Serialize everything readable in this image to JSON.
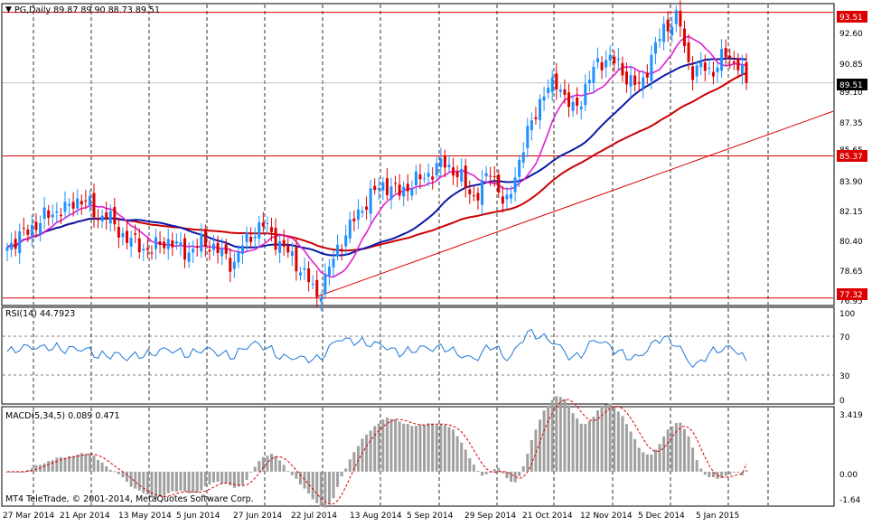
{
  "window": {
    "title": "PG,Daily  89.87 89.90 88.73 89.51",
    "symbol": "PG",
    "timeframe": "Daily",
    "ohlc": {
      "open": "89.87",
      "high": "89.90",
      "low": "88.73",
      "close": "89.51"
    }
  },
  "colors": {
    "background": "#ffffff",
    "grid": "#000000",
    "up_candle": "#1e90ff",
    "down_candle": "#dd0000",
    "ma_fast": "#e020d0",
    "ma_mid": "#0b1aa6",
    "ma_slow": "#cc0000",
    "level_line": "#dd0000",
    "trendline": "#dd0000",
    "rsi_line": "#1e78d8",
    "macd_hist": "#a0a0a0",
    "macd_signal": "#dd0000",
    "price_tag_red": "#dd0000",
    "price_tag_current": "#000000"
  },
  "price_axis": {
    "ticks": [
      "92.60",
      "90.85",
      "89.10",
      "87.35",
      "85.65",
      "83.90",
      "82.15",
      "80.40",
      "78.65",
      "76.95"
    ],
    "tags": {
      "top_level": "93.51",
      "current": "89.51",
      "mid_level": "85.37",
      "bottom_level": "77.32"
    }
  },
  "time_axis": {
    "labels": [
      "27 Mar 2014",
      "21 Apr 2014",
      "13 May 2014",
      "5 Jun 2014",
      "27 Jun 2014",
      "22 Jul 2014",
      "13 Aug 2014",
      "5 Sep 2014",
      "29 Sep 2014",
      "21 Oct 2014",
      "12 Nov 2014",
      "5 Dec 2014",
      "5 Jan 2015"
    ]
  },
  "rsi": {
    "title": "RSI(14) 44.7923",
    "ticks": [
      "100",
      "70",
      "30",
      "0"
    ]
  },
  "macd": {
    "title": "MACD(5,34,5) 0.089 0.471",
    "ticks": [
      "3.419",
      "0.00",
      "-1.64"
    ],
    "copyright": "MT4 TeleTrade, © 2001-2014, MetaQuotes Software Corp."
  },
  "chart_data": {
    "type": "candlestick",
    "title": "PG,Daily",
    "ylim": [
      76.95,
      93.95
    ],
    "x_labels": [
      "27 Mar 2014",
      "21 Apr 2014",
      "13 May 2014",
      "5 Jun 2014",
      "27 Jun 2014",
      "22 Jul 2014",
      "13 Aug 2014",
      "5 Sep 2014",
      "29 Sep 2014",
      "21 Oct 2014",
      "12 Nov 2014",
      "5 Dec 2014",
      "5 Jan 2015"
    ],
    "close_path": [
      80.2,
      80.6,
      80.9,
      81.2,
      81.6,
      81.9,
      82.1,
      82.4,
      82.3,
      82.8,
      83.0,
      82.5,
      81.8,
      82.2,
      81.5,
      81.0,
      80.7,
      80.4,
      80.2,
      80.0,
      80.3,
      80.6,
      80.4,
      80.1,
      79.9,
      80.2,
      80.5,
      80.3,
      80.0,
      79.6,
      79.2,
      80.2,
      80.7,
      81.2,
      81.5,
      81.0,
      80.4,
      80.0,
      79.5,
      78.9,
      78.3,
      77.4,
      78.2,
      79.3,
      80.3,
      81.0,
      81.8,
      82.4,
      83.0,
      83.5,
      83.8,
      83.5,
      83.3,
      83.6,
      83.9,
      84.1,
      84.4,
      84.7,
      85.0,
      84.6,
      84.2,
      83.5,
      83.0,
      83.6,
      84.6,
      83.8,
      82.2,
      83.8,
      85.3,
      86.6,
      87.8,
      88.9,
      89.2,
      89.6,
      88.7,
      87.9,
      88.5,
      89.7,
      90.4,
      90.8,
      91.0,
      90.4,
      89.9,
      89.6,
      89.1,
      90.6,
      91.7,
      92.4,
      93.0,
      93.4,
      90.8,
      90.2,
      90.5,
      90.0,
      90.5,
      91.2,
      90.6,
      90.8,
      89.51
    ],
    "levels": {
      "resistance": 93.51,
      "current": 89.51,
      "mid": 85.37,
      "support": 77.32
    },
    "rsi": {
      "last": 44.7923,
      "levels": [
        70,
        30
      ],
      "range": [
        0,
        100
      ]
    },
    "macd": {
      "fast": 5,
      "slow": 34,
      "signal": 5,
      "main": 0.089,
      "signal_value": 0.471,
      "range": [
        -1.64,
        3.419
      ]
    },
    "grid": true
  }
}
